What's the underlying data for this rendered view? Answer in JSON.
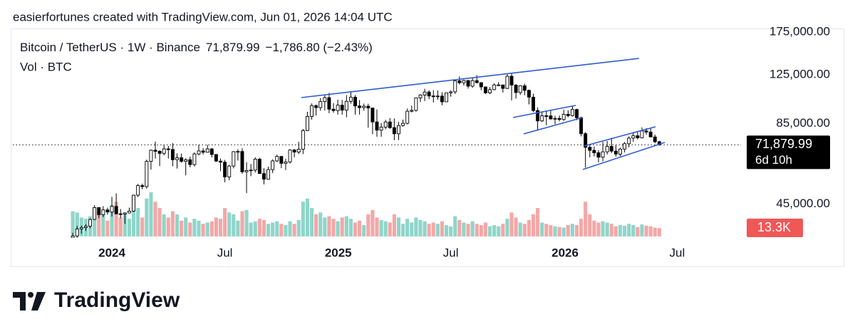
{
  "header": "easierfortunes created with TradingView.com, Jun 01, 2026 14:04 UTC",
  "brand": "TradingView",
  "chart_data": {
    "type": "candlestick",
    "title": "Bitcoin / TetherUS · 1W · Binance",
    "last_price": 71879.99,
    "last_price_label": "71,879.99",
    "change_label": "−1,786.80 (−2.43%)",
    "countdown": "6d 10h",
    "volume_title": "Vol · BTC",
    "volume_label": "13.3K",
    "log_scale": true,
    "ylim": [
      34300,
      180000
    ],
    "yticks": [
      {
        "value": 45000,
        "label": "45,000.00"
      },
      {
        "value": 85000,
        "label": "85,000.00"
      },
      {
        "value": 125000,
        "label": "125,000.00"
      },
      {
        "value": 175000,
        "label": "175,000.00"
      }
    ],
    "xlim": [
      -13.8,
      153.8
    ],
    "xticks": [
      {
        "value": 9,
        "label": "2024"
      },
      {
        "value": 35,
        "label": "Jul"
      },
      {
        "value": 61.1,
        "label": "2025"
      },
      {
        "value": 87,
        "label": "Jul"
      },
      {
        "value": 113.3,
        "label": "2026"
      },
      {
        "value": 139.1,
        "label": "Jul"
      }
    ],
    "up_color": "#ffffff",
    "down_color": "#000000",
    "volume_up_color": "#8fd5ca",
    "volume_down_color": "#f4a7a7",
    "open": [
      34500,
      35000,
      37000,
      37400,
      37800,
      39900,
      43800,
      41400,
      43000,
      42300,
      44200,
      41700,
      41600,
      42000,
      42600,
      48300,
      52100,
      51700,
      63100,
      68900,
      68300,
      67200,
      69600,
      69300,
      63900,
      64900,
      63100,
      63900,
      61500,
      66900,
      68500,
      67800,
      69600,
      66600,
      63200,
      62700,
      55800,
      60800,
      68100,
      68200,
      58100,
      58700,
      58900,
      64200,
      57300,
      54800,
      59100,
      63300,
      65600,
      62100,
      62800,
      69000,
      67900,
      69400,
      80400,
      89900,
      97900,
      96400,
      101100,
      104300,
      95200,
      94200,
      98300,
      94500,
      101300,
      104700,
      97700,
      96400,
      97500,
      96100,
      86100,
      80700,
      82600,
      86100,
      82300,
      78400,
      83700,
      85200,
      93700,
      94300,
      104100,
      106500,
      109000,
      105700,
      105600,
      105600,
      100900,
      108300,
      109200,
      119100,
      117300,
      119400,
      114200,
      119300,
      117400,
      113500,
      108300,
      111100,
      115300,
      115300,
      112200,
      123500,
      115200,
      108600,
      114500,
      110500,
      104700,
      94200,
      86800,
      90400,
      90300,
      88200,
      88500,
      87800,
      91500,
      90500,
      95000,
      89000,
      78500,
      70500,
      68800,
      67500,
      65200,
      68000,
      71000,
      68400,
      66800,
      69500,
      72500,
      75800,
      77200,
      76000,
      80200,
      79500,
      76500,
      73666.79
    ],
    "high": [
      35900,
      37900,
      38000,
      38400,
      40200,
      44700,
      43900,
      44300,
      43800,
      47700,
      49000,
      43300,
      42200,
      43800,
      48500,
      52800,
      52900,
      64000,
      69200,
      73700,
      68900,
      71700,
      71300,
      72800,
      67200,
      67100,
      64700,
      65500,
      67700,
      71900,
      70000,
      71900,
      70100,
      66800,
      64500,
      63800,
      61400,
      68400,
      69400,
      70000,
      62700,
      61800,
      65100,
      64900,
      59800,
      60500,
      64100,
      66500,
      65600,
      64400,
      69400,
      69500,
      73600,
      81500,
      93300,
      99600,
      98800,
      104000,
      106500,
      108300,
      99900,
      102700,
      102500,
      106400,
      109600,
      106400,
      102300,
      99500,
      99400,
      96200,
      95000,
      85300,
      87500,
      88700,
      88500,
      86100,
      87700,
      95700,
      97900,
      104300,
      107100,
      111900,
      110500,
      110600,
      110400,
      108900,
      108500,
      110500,
      119800,
      123200,
      120200,
      119900,
      122300,
      124500,
      117800,
      113600,
      113400,
      116700,
      117900,
      115400,
      125600,
      126200,
      116000,
      115000,
      116400,
      111100,
      107500,
      96500,
      92800,
      94100,
      94600,
      90400,
      90600,
      94800,
      94400,
      97900,
      95500,
      89800,
      79500,
      72200,
      70900,
      69000,
      73600,
      74100,
      76000,
      71700,
      70300,
      73500,
      76800,
      79500,
      79400,
      82500,
      82000,
      81900,
      77900,
      74200
    ],
    "low": [
      34100,
      34500,
      35600,
      36400,
      37200,
      39700,
      40300,
      40600,
      41400,
      40800,
      41500,
      40300,
      38500,
      41800,
      42300,
      47600,
      50600,
      50900,
      59100,
      64500,
      60800,
      66100,
      64500,
      60700,
      59600,
      62400,
      56500,
      60200,
      60600,
      66100,
      66600,
      67600,
      65100,
      62800,
      58400,
      53500,
      54300,
      59700,
      63500,
      57200,
      49100,
      56100,
      57800,
      57200,
      52600,
      54600,
      57500,
      62700,
      59800,
      58900,
      62000,
      65100,
      66800,
      66800,
      80200,
      87700,
      90700,
      94000,
      94200,
      92200,
      92600,
      91200,
      91200,
      89300,
      99500,
      91200,
      91200,
      94100,
      82300,
      78200,
      76600,
      76600,
      81200,
      81600,
      74500,
      74600,
      83000,
      84500,
      92800,
      93400,
      100700,
      101500,
      103100,
      100400,
      102600,
      98200,
      100900,
      105100,
      107400,
      115700,
      114700,
      112000,
      112700,
      116800,
      110600,
      107300,
      107300,
      110600,
      114400,
      108600,
      111700,
      102000,
      103500,
      106600,
      106300,
      98900,
      93000,
      80600,
      86000,
      83900,
      87600,
      84500,
      86500,
      86800,
      89300,
      89800,
      87300,
      76800,
      60100,
      65100,
      65600,
      62600,
      63100,
      66600,
      67400,
      65500,
      65700,
      67700,
      70500,
      73700,
      75000,
      75600,
      77900,
      76200,
      72800,
      71400
    ],
    "close": [
      35000,
      37000,
      37400,
      37800,
      39900,
      43800,
      41400,
      43000,
      42300,
      44200,
      41700,
      41600,
      42000,
      42600,
      48300,
      52100,
      51700,
      63100,
      68900,
      68300,
      67200,
      69600,
      69300,
      63900,
      64900,
      63100,
      63900,
      61500,
      66900,
      68500,
      67800,
      69600,
      66600,
      63200,
      62700,
      55800,
      60800,
      68100,
      68200,
      58100,
      58700,
      58900,
      64200,
      57300,
      54800,
      59100,
      63300,
      65600,
      62100,
      62800,
      69000,
      67900,
      69400,
      80400,
      89900,
      97900,
      96400,
      101100,
      104300,
      95200,
      94200,
      98300,
      94500,
      101300,
      104700,
      97700,
      96400,
      97500,
      96100,
      86100,
      80700,
      82600,
      86100,
      82300,
      78400,
      83700,
      85200,
      93700,
      94300,
      104100,
      106500,
      109000,
      105700,
      105600,
      105600,
      100900,
      108300,
      109200,
      119100,
      117300,
      119400,
      114200,
      119300,
      117400,
      113500,
      108300,
      111100,
      115300,
      115300,
      112200,
      123500,
      115200,
      108600,
      114500,
      110500,
      104700,
      94200,
      86800,
      90400,
      90300,
      88200,
      88500,
      87800,
      91500,
      90500,
      95000,
      89000,
      78500,
      70500,
      68800,
      67500,
      65200,
      68000,
      71000,
      68400,
      66800,
      69500,
      72500,
      75800,
      77200,
      76000,
      80200,
      79500,
      76500,
      73666.79,
      71879.99
    ],
    "volume": [
      40000,
      38000,
      30000,
      28000,
      32000,
      45000,
      40000,
      35000,
      25000,
      50000,
      55000,
      30000,
      35000,
      28000,
      40000,
      45000,
      30000,
      60000,
      70000,
      55000,
      45000,
      35000,
      30000,
      40000,
      35000,
      25000,
      30000,
      22000,
      28000,
      25000,
      20000,
      22000,
      24000,
      30000,
      28000,
      45000,
      38000,
      35000,
      25000,
      40000,
      42000,
      22000,
      24000,
      28000,
      26000,
      20000,
      22000,
      24000,
      20000,
      18000,
      24000,
      20000,
      26000,
      55000,
      60000,
      45000,
      35000,
      38000,
      30000,
      32000,
      28000,
      24000,
      30000,
      32000,
      28000,
      22000,
      25000,
      18000,
      35000,
      42000,
      30000,
      26000,
      24000,
      22000,
      35000,
      30000,
      20000,
      28000,
      22000,
      30000,
      26000,
      24000,
      20000,
      22000,
      20000,
      24000,
      18000,
      16000,
      32000,
      26000,
      22000,
      20000,
      24000,
      20000,
      18000,
      22000,
      16000,
      18000,
      16000,
      20000,
      28000,
      38000,
      30000,
      22000,
      20000,
      26000,
      35000,
      45000,
      22000,
      20000,
      18000,
      16000,
      15000,
      14000,
      18000,
      20000,
      18000,
      28000,
      55000,
      35000,
      25000,
      22000,
      24000,
      22000,
      20000,
      16000,
      18000,
      17000,
      20000,
      18000,
      15000,
      19000,
      17000,
      16000,
      14000,
      13300
    ]
  }
}
